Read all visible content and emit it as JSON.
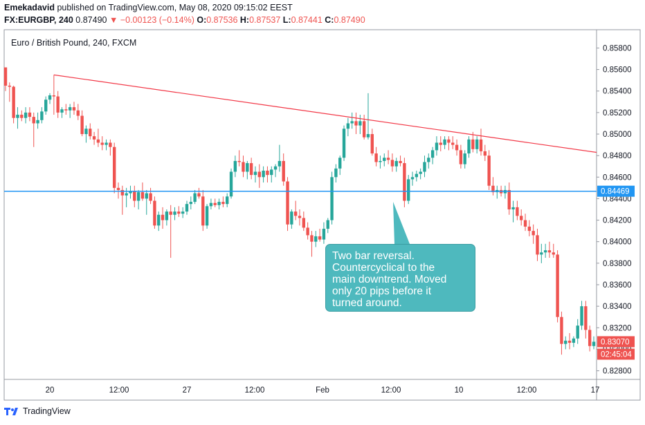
{
  "header": {
    "author": "Emekadavid",
    "published_text": "published on TradingView.com, May 08, 2020 09:15:02 EEST",
    "symbol": "FX:EURGBP, 240",
    "last": "0.87490",
    "change_arrow": "▼",
    "change": "−0.00123 (−0.14%)",
    "o_label": "O:",
    "o_value": "0.87536",
    "h_label": "H:",
    "h_value": "0.87537",
    "l_label": "L:",
    "l_value": "0.87441",
    "c_label": "C:",
    "c_value": "0.87490"
  },
  "footer": {
    "brand": "TradingView",
    "logo_icon": "tradingview-logo-icon"
  },
  "callout": {
    "lines": [
      "Two bar reversal.",
      "Countercyclical to the",
      "main downtrend. Moved",
      "only 20 pips before it",
      "turned around."
    ]
  },
  "colors": {
    "up": "#26a69a",
    "down": "#ef5350",
    "trendline": "#f23645",
    "support": "#2196f3",
    "callout": "#4eb9be"
  },
  "chart_data": {
    "type": "candlestick",
    "title": "Euro / British Pound, 240, FXCM",
    "y_ticks": [
      "0.85800",
      "0.85600",
      "0.85400",
      "0.85200",
      "0.85000",
      "0.84800",
      "0.84600",
      "0.84400",
      "0.84200",
      "0.84000",
      "0.83800",
      "0.83600",
      "0.83400",
      "0.83200",
      "0.83000",
      "0.82800"
    ],
    "ylim": [
      0.8272,
      0.8597
    ],
    "x_ticks": [
      "20",
      "12:00",
      "27",
      "12:00",
      "Feb",
      "12:00",
      "10",
      "12:00",
      "17"
    ],
    "price_labels": {
      "support": "0.84469",
      "last": "0.83070",
      "countdown": "02:45:04"
    },
    "support_level": 0.84469,
    "trendline": {
      "start_bar": 12,
      "start": 0.8555,
      "end_bar": 139,
      "end": 0.8483
    },
    "ohlc": [
      [
        0.8562,
        0.8562,
        0.854,
        0.8545
      ],
      [
        0.8545,
        0.8548,
        0.853,
        0.8544
      ],
      [
        0.8544,
        0.8545,
        0.851,
        0.8515
      ],
      [
        0.8515,
        0.8525,
        0.8505,
        0.8518
      ],
      [
        0.8518,
        0.8522,
        0.8512,
        0.8515
      ],
      [
        0.8515,
        0.8525,
        0.851,
        0.852
      ],
      [
        0.852,
        0.8525,
        0.8512,
        0.8516
      ],
      [
        0.8516,
        0.852,
        0.8488,
        0.851
      ],
      [
        0.851,
        0.852,
        0.8505,
        0.8513
      ],
      [
        0.8513,
        0.8525,
        0.851,
        0.8521
      ],
      [
        0.8521,
        0.8535,
        0.8518,
        0.8532
      ],
      [
        0.8532,
        0.8538,
        0.8528,
        0.8536
      ],
      [
        0.8536,
        0.8555,
        0.8518,
        0.8535
      ],
      [
        0.8535,
        0.854,
        0.8515,
        0.852
      ],
      [
        0.852,
        0.8525,
        0.8515,
        0.8523
      ],
      [
        0.8523,
        0.8528,
        0.8518,
        0.8522
      ],
      [
        0.8522,
        0.8528,
        0.8515,
        0.8525
      ],
      [
        0.8525,
        0.853,
        0.8518,
        0.8522
      ],
      [
        0.8522,
        0.8528,
        0.8513,
        0.8517
      ],
      [
        0.8517,
        0.8522,
        0.8498,
        0.85
      ],
      [
        0.85,
        0.8508,
        0.8492,
        0.8505
      ],
      [
        0.8505,
        0.851,
        0.8495,
        0.8498
      ],
      [
        0.8498,
        0.8502,
        0.849,
        0.8495
      ],
      [
        0.8495,
        0.8505,
        0.8488,
        0.8492
      ],
      [
        0.8492,
        0.8498,
        0.8485,
        0.849
      ],
      [
        0.849,
        0.8495,
        0.8485,
        0.8492
      ],
      [
        0.8492,
        0.8495,
        0.848,
        0.8488
      ],
      [
        0.8488,
        0.8492,
        0.8445,
        0.845
      ],
      [
        0.845,
        0.8455,
        0.844,
        0.8448
      ],
      [
        0.8448,
        0.8452,
        0.8425,
        0.8443
      ],
      [
        0.8443,
        0.845,
        0.8432,
        0.8445
      ],
      [
        0.8445,
        0.8452,
        0.844,
        0.8447
      ],
      [
        0.8447,
        0.8452,
        0.8432,
        0.8438
      ],
      [
        0.8438,
        0.8448,
        0.843,
        0.8446
      ],
      [
        0.8446,
        0.8455,
        0.8438,
        0.844
      ],
      [
        0.844,
        0.8448,
        0.8425,
        0.8445
      ],
      [
        0.8445,
        0.845,
        0.8435,
        0.8438
      ],
      [
        0.8438,
        0.8442,
        0.8412,
        0.8415
      ],
      [
        0.8415,
        0.8428,
        0.841,
        0.8425
      ],
      [
        0.8425,
        0.8432,
        0.8412,
        0.842
      ],
      [
        0.842,
        0.843,
        0.8415,
        0.8428
      ],
      [
        0.8428,
        0.8434,
        0.8385,
        0.8425
      ],
      [
        0.8425,
        0.8432,
        0.842,
        0.8428
      ],
      [
        0.8428,
        0.8433,
        0.8423,
        0.8426
      ],
      [
        0.8426,
        0.8432,
        0.8422,
        0.8428
      ],
      [
        0.8428,
        0.8438,
        0.8425,
        0.8435
      ],
      [
        0.8435,
        0.8442,
        0.843,
        0.8437
      ],
      [
        0.8437,
        0.8448,
        0.8435,
        0.8445
      ],
      [
        0.8445,
        0.845,
        0.844,
        0.8442
      ],
      [
        0.8442,
        0.8448,
        0.841,
        0.8415
      ],
      [
        0.8415,
        0.8435,
        0.8412,
        0.8433
      ],
      [
        0.8433,
        0.844,
        0.843,
        0.8436
      ],
      [
        0.8436,
        0.844,
        0.8432,
        0.8434
      ],
      [
        0.8434,
        0.844,
        0.843,
        0.8437
      ],
      [
        0.8437,
        0.8442,
        0.8432,
        0.8435
      ],
      [
        0.8435,
        0.8445,
        0.8432,
        0.8442
      ],
      [
        0.8442,
        0.8468,
        0.844,
        0.8465
      ],
      [
        0.8465,
        0.848,
        0.846,
        0.8475
      ],
      [
        0.8475,
        0.8485,
        0.847,
        0.8474
      ],
      [
        0.8474,
        0.848,
        0.846,
        0.8465
      ],
      [
        0.8465,
        0.8475,
        0.8458,
        0.8473
      ],
      [
        0.8473,
        0.8478,
        0.8458,
        0.8462
      ],
      [
        0.8462,
        0.847,
        0.8455,
        0.8465
      ],
      [
        0.8465,
        0.8472,
        0.845,
        0.846
      ],
      [
        0.846,
        0.847,
        0.8455,
        0.8466
      ],
      [
        0.8466,
        0.847,
        0.8455,
        0.8462
      ],
      [
        0.8462,
        0.847,
        0.8455,
        0.8467
      ],
      [
        0.8467,
        0.8472,
        0.846,
        0.847
      ],
      [
        0.847,
        0.849,
        0.8465,
        0.8475
      ],
      [
        0.8475,
        0.8482,
        0.8452,
        0.8456
      ],
      [
        0.8456,
        0.846,
        0.841,
        0.8416
      ],
      [
        0.8416,
        0.843,
        0.8412,
        0.8428
      ],
      [
        0.8428,
        0.8438,
        0.842,
        0.8424
      ],
      [
        0.8424,
        0.843,
        0.8415,
        0.8422
      ],
      [
        0.8422,
        0.8428,
        0.841,
        0.8413
      ],
      [
        0.8413,
        0.8418,
        0.8402,
        0.8406
      ],
      [
        0.8406,
        0.841,
        0.8386,
        0.84
      ],
      [
        0.84,
        0.841,
        0.8395,
        0.8405
      ],
      [
        0.8405,
        0.8412,
        0.84,
        0.8402
      ],
      [
        0.8402,
        0.8418,
        0.8398,
        0.8412
      ],
      [
        0.8412,
        0.8422,
        0.8408,
        0.842
      ],
      [
        0.842,
        0.8465,
        0.8416,
        0.846
      ],
      [
        0.846,
        0.8472,
        0.8455,
        0.8468
      ],
      [
        0.8468,
        0.848,
        0.8462,
        0.8478
      ],
      [
        0.8478,
        0.8508,
        0.8475,
        0.8505
      ],
      [
        0.8505,
        0.8515,
        0.8498,
        0.851
      ],
      [
        0.851,
        0.852,
        0.8505,
        0.8512
      ],
      [
        0.8512,
        0.852,
        0.85,
        0.8508
      ],
      [
        0.8508,
        0.8518,
        0.85,
        0.8512
      ],
      [
        0.8512,
        0.8518,
        0.8495,
        0.8497
      ],
      [
        0.8497,
        0.8538,
        0.8495,
        0.85
      ],
      [
        0.85,
        0.8505,
        0.848,
        0.8482
      ],
      [
        0.8482,
        0.8488,
        0.847,
        0.8474
      ],
      [
        0.8474,
        0.848,
        0.8468,
        0.8475
      ],
      [
        0.8475,
        0.8482,
        0.847,
        0.8478
      ],
      [
        0.8478,
        0.8485,
        0.8472,
        0.8476
      ],
      [
        0.8476,
        0.8482,
        0.8465,
        0.847
      ],
      [
        0.847,
        0.8478,
        0.8465,
        0.8475
      ],
      [
        0.8475,
        0.848,
        0.847,
        0.8473
      ],
      [
        0.8473,
        0.8478,
        0.8432,
        0.8438
      ],
      [
        0.8438,
        0.8462,
        0.8435,
        0.8458
      ],
      [
        0.8458,
        0.8465,
        0.8452,
        0.846
      ],
      [
        0.846,
        0.8466,
        0.8456,
        0.8463
      ],
      [
        0.8463,
        0.8468,
        0.8458,
        0.8465
      ],
      [
        0.8465,
        0.848,
        0.846,
        0.8474
      ],
      [
        0.8474,
        0.8482,
        0.8468,
        0.8478
      ],
      [
        0.8478,
        0.8488,
        0.8472,
        0.8485
      ],
      [
        0.8485,
        0.8498,
        0.848,
        0.8492
      ],
      [
        0.8492,
        0.8498,
        0.8484,
        0.849
      ],
      [
        0.849,
        0.8498,
        0.8486,
        0.8495
      ],
      [
        0.8495,
        0.8498,
        0.8485,
        0.8492
      ],
      [
        0.8492,
        0.8498,
        0.8486,
        0.849
      ],
      [
        0.849,
        0.8495,
        0.848,
        0.8485
      ],
      [
        0.8485,
        0.849,
        0.8468,
        0.8472
      ],
      [
        0.8472,
        0.8485,
        0.8468,
        0.8482
      ],
      [
        0.8482,
        0.8498,
        0.8478,
        0.8495
      ],
      [
        0.8495,
        0.8502,
        0.8483,
        0.8486
      ],
      [
        0.8486,
        0.8498,
        0.8482,
        0.8495
      ],
      [
        0.8495,
        0.8505,
        0.848,
        0.8484
      ],
      [
        0.8484,
        0.849,
        0.8475,
        0.848
      ],
      [
        0.848,
        0.8485,
        0.8448,
        0.8452
      ],
      [
        0.8452,
        0.846,
        0.8443,
        0.8446
      ],
      [
        0.8446,
        0.8452,
        0.844,
        0.8448
      ],
      [
        0.8448,
        0.8452,
        0.8442,
        0.8445
      ],
      [
        0.8445,
        0.8452,
        0.844,
        0.8448
      ],
      [
        0.8448,
        0.8455,
        0.8425,
        0.843
      ],
      [
        0.843,
        0.8438,
        0.8418,
        0.8432
      ],
      [
        0.8432,
        0.8438,
        0.842,
        0.8424
      ],
      [
        0.8424,
        0.843,
        0.8415,
        0.842
      ],
      [
        0.842,
        0.8426,
        0.841,
        0.8414
      ],
      [
        0.8414,
        0.842,
        0.8405,
        0.841
      ],
      [
        0.841,
        0.8416,
        0.8398,
        0.8406
      ],
      [
        0.8406,
        0.8412,
        0.8382,
        0.8388
      ],
      [
        0.8388,
        0.8398,
        0.838,
        0.839
      ],
      [
        0.839,
        0.8398,
        0.8385,
        0.8392
      ],
      [
        0.8392,
        0.84,
        0.8385,
        0.839
      ],
      [
        0.839,
        0.8398,
        0.8385,
        0.8388
      ],
      [
        0.8388,
        0.8392,
        0.8325,
        0.833
      ],
      [
        0.833,
        0.8335,
        0.8295,
        0.8305
      ],
      [
        0.8305,
        0.8312,
        0.83,
        0.8308
      ],
      [
        0.8308,
        0.8315,
        0.83,
        0.8306
      ],
      [
        0.8306,
        0.8312,
        0.8302,
        0.831
      ],
      [
        0.831,
        0.8328,
        0.8305,
        0.8322
      ],
      [
        0.8322,
        0.8345,
        0.8318,
        0.834
      ],
      [
        0.834,
        0.8345,
        0.831,
        0.8318
      ],
      [
        0.8318,
        0.8322,
        0.8298,
        0.8303
      ],
      [
        0.8303,
        0.8312,
        0.83,
        0.8307
      ]
    ]
  }
}
